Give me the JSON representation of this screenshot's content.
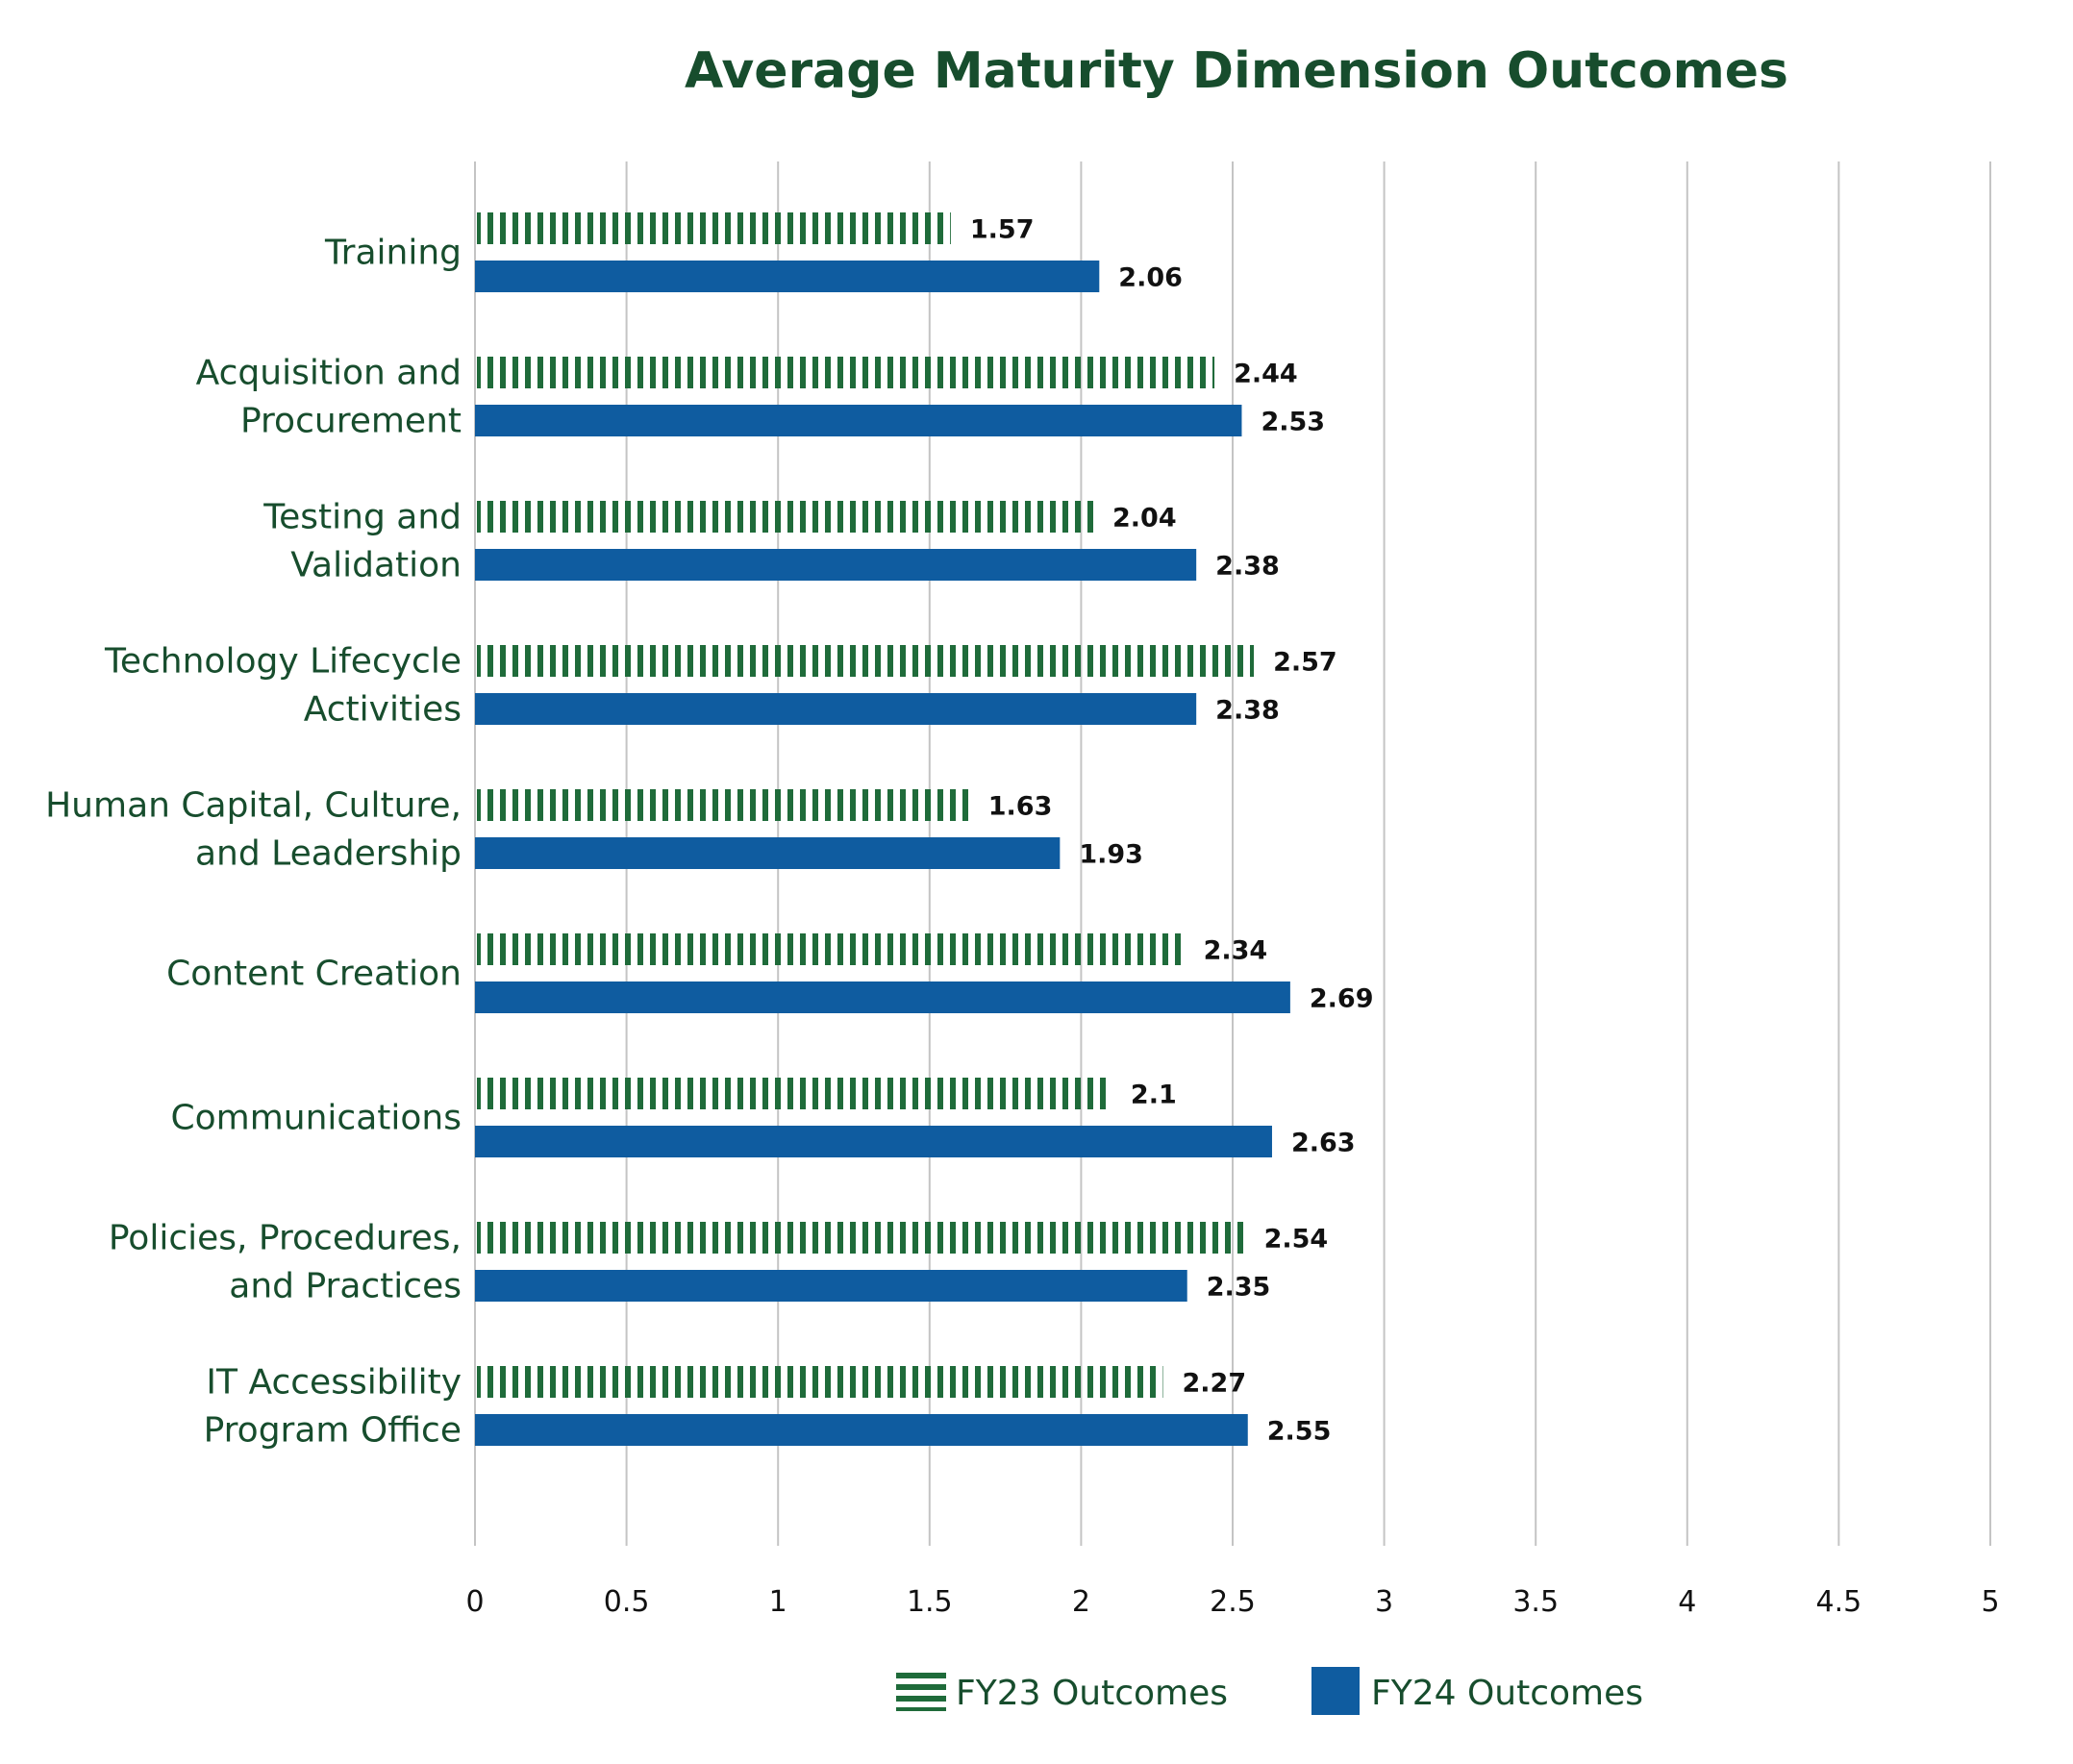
{
  "chart_data": {
    "type": "bar",
    "orientation": "horizontal",
    "title": "Average Maturity Dimension Outcomes",
    "categories": [
      [
        "Training"
      ],
      [
        "Acquisition and",
        "Procurement"
      ],
      [
        "Testing and",
        "Validation"
      ],
      [
        "Technology Lifecycle",
        "Activities"
      ],
      [
        "Human Capital, Culture,",
        "and Leadership"
      ],
      [
        "Content Creation"
      ],
      [
        "Communications"
      ],
      [
        "Policies, Procedures,",
        "and Practices"
      ],
      [
        "IT Accessibility",
        "Program Office"
      ]
    ],
    "series": [
      {
        "name": "FY23 Outcomes",
        "pattern": "vertical-stripes",
        "color": "#1f6b3a",
        "values": [
          1.57,
          2.44,
          2.04,
          2.57,
          1.63,
          2.34,
          2.1,
          2.54,
          2.27
        ],
        "labels": [
          "1.57",
          "2.44",
          "2.04",
          "2.57",
          "1.63",
          "2.34",
          "2.1",
          "2.54",
          "2.27"
        ]
      },
      {
        "name": "FY24 Outcomes",
        "pattern": "solid",
        "color": "#0f5ca0",
        "values": [
          2.06,
          2.53,
          2.38,
          2.38,
          1.93,
          2.69,
          2.63,
          2.35,
          2.55
        ],
        "labels": [
          "2.06",
          "2.53",
          "2.38",
          "2.38",
          "1.93",
          "2.69",
          "2.63",
          "2.35",
          "2.55"
        ]
      }
    ],
    "xlim": [
      0,
      5
    ],
    "xticks": [
      "0",
      "0.5",
      "1",
      "1.5",
      "2",
      "2.5",
      "3",
      "3.5",
      "4",
      "4.5",
      "5"
    ],
    "grid": "vertical",
    "legend": "bottom"
  }
}
